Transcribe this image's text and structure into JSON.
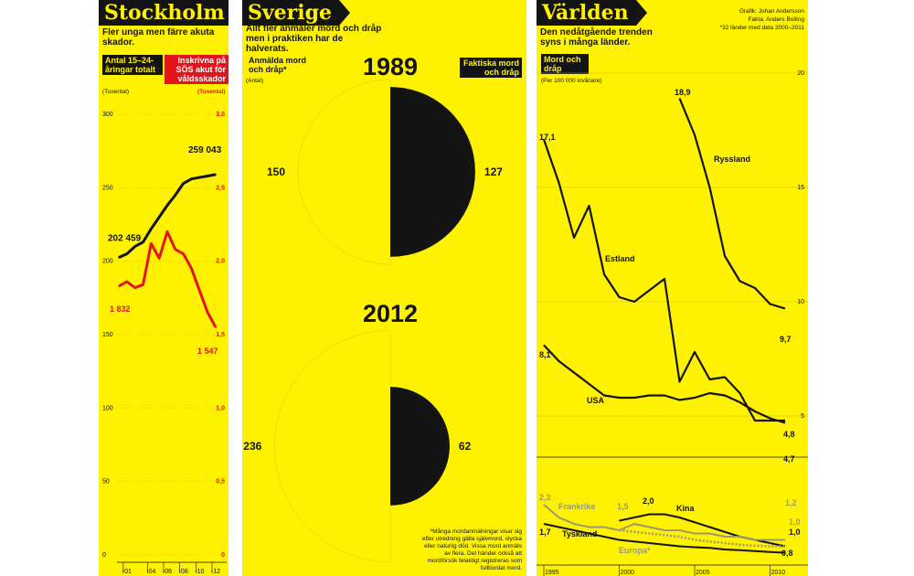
{
  "stockholm": {
    "title": "Stockholm",
    "subtitle": "Fler unga men färre akuta skador.",
    "label_left": "Antal 15–24-åringar totalt",
    "label_right": "Inskrivna på SÖS akut för våldsskador",
    "unit_left": "(Tusental)",
    "unit_right": "(Tusental)"
  },
  "sverige": {
    "title": "Sverige",
    "subtitle": "Allt fler anmäler mord och dråp men i praktiken har de halverats.",
    "label_reported": "Anmälda mord och dråp*",
    "unit_reported": "(Antal)",
    "label_actual": "Faktiska mord och dråp",
    "footnote": "*Många mordanmälningar visar sig efter utredning gälla självmord, olycka eller naturlig död. Vissa mord anmäls av flera. Det händer också att mordförsök felaktigt registreras som fullbordat mord."
  },
  "varlden": {
    "title": "Världen",
    "subtitle": "Den nedåtgående trenden syns i många länder.",
    "credit_1": "Grafik: Johan Andersson",
    "credit_2": "Fakta: Anders Bolling",
    "credit_3": "*32 länder med data 2000–2011",
    "series_label": "Mord och dråp",
    "unit": "(Per 100 000 invånare)"
  },
  "colors": {
    "panel": "#fff200",
    "ink": "#141414",
    "red": "#e3151a",
    "gray": "#9a9a72",
    "grid": "#c9c000"
  },
  "chart_data": [
    {
      "type": "line",
      "title": "Stockholm",
      "x": [
        2000,
        2001,
        2002,
        2003,
        2004,
        2005,
        2006,
        2007,
        2008,
        2009,
        2010,
        2011,
        2012
      ],
      "x_tick_labels": [
        "-01",
        "-04",
        "-06",
        "-08",
        "-10",
        "-12"
      ],
      "x_tick_values": [
        2001,
        2004,
        2006,
        2008,
        2010,
        2012
      ],
      "y_left_ticks": [
        0,
        50,
        100,
        150,
        200,
        250,
        300
      ],
      "y_right_ticks": [
        "0",
        "0,5",
        "1,0",
        "1,5",
        "2,0",
        "2,5",
        "3,0"
      ],
      "ylim_left": [
        0,
        300
      ],
      "ylim_right": [
        0,
        3.0
      ],
      "series": [
        {
          "name": "Antal 15–24-åringar totalt",
          "axis": "left",
          "color": "#141414",
          "values": [
            202.5,
            205,
            210,
            213,
            222,
            230,
            238,
            245,
            253,
            256,
            257,
            258,
            259
          ]
        },
        {
          "name": "Inskrivna på SÖS akut för våldsskador",
          "axis": "right",
          "color": "#e3151a",
          "values": [
            1.83,
            1.86,
            1.82,
            1.84,
            2.12,
            2.02,
            2.2,
            2.08,
            2.05,
            1.95,
            1.8,
            1.65,
            1.55
          ]
        }
      ],
      "annotations": [
        {
          "text": "202 459",
          "series": 0,
          "index": 0
        },
        {
          "text": "259 043",
          "series": 0,
          "index": 12
        },
        {
          "text": "1 832",
          "series": 1,
          "index": 0
        },
        {
          "text": "1 547",
          "series": 1,
          "index": 12
        }
      ]
    },
    {
      "type": "pie",
      "title": "Sverige",
      "charts": [
        {
          "year": "1989",
          "slices": [
            {
              "label": "Anmälda mord och dråp",
              "value": 150
            },
            {
              "label": "Faktiska mord och dråp",
              "value": 127
            }
          ]
        },
        {
          "year": "2012",
          "slices": [
            {
              "label": "Anmälda mord och dråp",
              "value": 236
            },
            {
              "label": "Faktiska mord och dråp",
              "value": 62
            }
          ]
        }
      ]
    },
    {
      "type": "line",
      "title": "Världen",
      "x_tick_labels": [
        "1995",
        "2000",
        "2005",
        "2010"
      ],
      "x_tick_values": [
        1995,
        2000,
        2005,
        2010
      ],
      "y_ticks": [
        "5",
        "10",
        "15",
        "20"
      ],
      "y_tick_values": [
        5,
        10,
        15,
        20
      ],
      "ylim": [
        3.6,
        20
      ],
      "series": [
        {
          "name": "Ryssland",
          "x": [
            2004,
            2005,
            2006,
            2007,
            2008,
            2009,
            2010,
            2011
          ],
          "values": [
            18.9,
            17.3,
            15.0,
            12.0,
            10.9,
            10.6,
            9.9,
            9.7
          ]
        },
        {
          "name": "Estland",
          "x": [
            1995,
            1996,
            1997,
            1998,
            1999,
            2000,
            2001,
            2002,
            2003,
            2004,
            2005,
            2006,
            2007,
            2008,
            2009,
            2010,
            2011
          ],
          "values": [
            17.1,
            15.2,
            12.8,
            14.2,
            11.2,
            10.2,
            10.0,
            10.5,
            11.0,
            6.5,
            7.8,
            6.6,
            6.7,
            6.0,
            4.8,
            4.8,
            4.8
          ]
        },
        {
          "name": "USA",
          "x": [
            1995,
            1996,
            1997,
            1998,
            1999,
            2000,
            2001,
            2002,
            2003,
            2004,
            2005,
            2006,
            2007,
            2008,
            2009,
            2010,
            2011
          ],
          "values": [
            8.1,
            7.4,
            6.9,
            6.4,
            5.9,
            5.8,
            5.8,
            5.9,
            5.9,
            5.7,
            5.8,
            6.0,
            5.9,
            5.6,
            5.2,
            4.9,
            4.7
          ]
        }
      ],
      "annotations": [
        "17,1",
        "18,9",
        "9,7",
        "8,1",
        "4,8",
        "4,7"
      ]
    },
    {
      "type": "line",
      "title": "Världen (nedre)",
      "xlim": [
        1995,
        2011
      ],
      "ylim": [
        0.5,
        2.5
      ],
      "series": [
        {
          "name": "Kina",
          "x": [
            2000,
            2001,
            2002,
            2003,
            2004,
            2005,
            2006,
            2007,
            2008,
            2009,
            2010,
            2011
          ],
          "values": [
            1.8,
            1.9,
            2.0,
            2.0,
            1.9,
            1.75,
            1.6,
            1.45,
            1.3,
            1.2,
            1.1,
            1.0
          ]
        },
        {
          "name": "Frankrike",
          "x": [
            1995,
            1996,
            1997,
            1998,
            1999,
            2000,
            2001,
            2002,
            2003,
            2004,
            2005,
            2006,
            2007,
            2008,
            2009,
            2010,
            2011
          ],
          "values": [
            2.3,
            1.9,
            1.7,
            1.6,
            1.6,
            1.5,
            1.7,
            1.6,
            1.5,
            1.5,
            1.4,
            1.4,
            1.3,
            1.3,
            1.2,
            1.2,
            1.2
          ]
        },
        {
          "name": "Tyskland",
          "x": [
            1995,
            1996,
            1997,
            1998,
            1999,
            2000,
            2001,
            2002,
            2003,
            2004,
            2005,
            2006,
            2007,
            2008,
            2009,
            2010,
            2011
          ],
          "values": [
            1.7,
            1.6,
            1.5,
            1.4,
            1.3,
            1.2,
            1.15,
            1.1,
            1.05,
            1.0,
            0.97,
            0.95,
            0.9,
            0.88,
            0.85,
            0.82,
            0.8
          ]
        },
        {
          "name": "Europa*",
          "x": [
            2000,
            2001,
            2002,
            2003,
            2004,
            2005,
            2006,
            2007,
            2008,
            2009,
            2010,
            2011
          ],
          "values": [
            1.5,
            1.45,
            1.4,
            1.35,
            1.3,
            1.2,
            1.15,
            1.1,
            1.05,
            1.02,
            1.0,
            1.0
          ]
        }
      ],
      "annotations": [
        "2,3",
        "1,7",
        "1,5",
        "2,0",
        "1,2",
        "1,0",
        "1,0",
        "0,8"
      ]
    }
  ]
}
